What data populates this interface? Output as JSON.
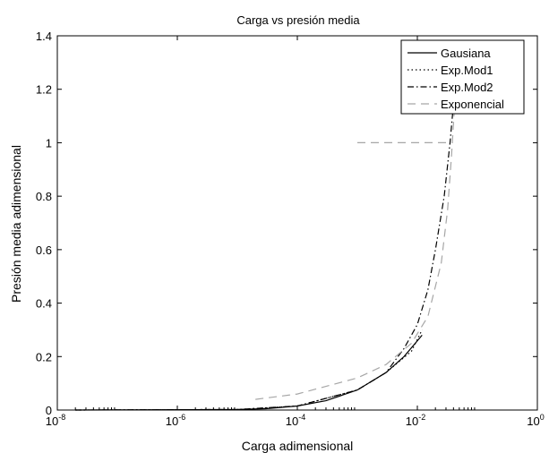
{
  "chart_data": {
    "type": "line",
    "title": "Carga vs presión media",
    "xlabel": "Carga adimensional",
    "ylabel": "Presión media adimensional",
    "xscale": "log",
    "xlim": [
      1e-08,
      1
    ],
    "ylim": [
      0,
      1.4
    ],
    "grid": false,
    "legend_position": "top-right",
    "x_ticks": [
      {
        "base": "10",
        "exp": "-8",
        "value": 1e-08
      },
      {
        "base": "10",
        "exp": "-6",
        "value": 1e-06
      },
      {
        "base": "10",
        "exp": "-4",
        "value": 0.0001
      },
      {
        "base": "10",
        "exp": "-2",
        "value": 0.01
      },
      {
        "base": "10",
        "exp": "0",
        "value": 1
      }
    ],
    "y_ticks": [
      "0",
      "0.2",
      "0.4",
      "0.6",
      "0.8",
      "1",
      "1.2",
      "1.4"
    ],
    "series": [
      {
        "name": "Gausiana",
        "style": "solid",
        "color": "#000000",
        "points": [
          [
            2e-08,
            0.0
          ],
          [
            1e-05,
            0.002
          ],
          [
            3e-05,
            0.005
          ],
          [
            0.0001,
            0.015
          ],
          [
            0.0003,
            0.035
          ],
          [
            0.001,
            0.075
          ],
          [
            0.003,
            0.14
          ],
          [
            0.006,
            0.2
          ],
          [
            0.012,
            0.28
          ]
        ]
      },
      {
        "name": "Exp.Mod1",
        "style": "dotted",
        "color": "#000000",
        "points": [
          [
            2e-08,
            0.0
          ],
          [
            1e-05,
            0.002
          ],
          [
            0.0001,
            0.015
          ],
          [
            0.001,
            0.075
          ],
          [
            0.003,
            0.14
          ],
          [
            0.008,
            0.22
          ],
          [
            0.012,
            0.3
          ]
        ]
      },
      {
        "name": "Exp.Mod2",
        "style": "dashdot",
        "color": "#000000",
        "points": [
          [
            2e-08,
            0.0
          ],
          [
            1e-05,
            0.002
          ],
          [
            0.0001,
            0.015
          ],
          [
            0.001,
            0.075
          ],
          [
            0.003,
            0.14
          ],
          [
            0.006,
            0.23
          ],
          [
            0.01,
            0.32
          ],
          [
            0.015,
            0.45
          ],
          [
            0.02,
            0.6
          ],
          [
            0.028,
            0.8
          ],
          [
            0.035,
            1.0
          ],
          [
            0.042,
            1.2
          ],
          [
            0.046,
            1.35
          ]
        ]
      },
      {
        "name": "Exponencial",
        "style": "dashed",
        "color": "#a6a6a6",
        "segments": [
          [
            [
              2e-05,
              0.04
            ],
            [
              0.0001,
              0.06
            ],
            [
              0.001,
              0.12
            ],
            [
              0.003,
              0.17
            ],
            [
              0.008,
              0.25
            ],
            [
              0.015,
              0.35
            ],
            [
              0.025,
              0.55
            ],
            [
              0.032,
              0.75
            ],
            [
              0.037,
              0.95
            ],
            [
              0.042,
              1.15
            ],
            [
              0.046,
              1.3
            ]
          ],
          [
            [
              0.001,
              1.0
            ],
            [
              0.035,
              1.0
            ]
          ]
        ]
      }
    ]
  }
}
